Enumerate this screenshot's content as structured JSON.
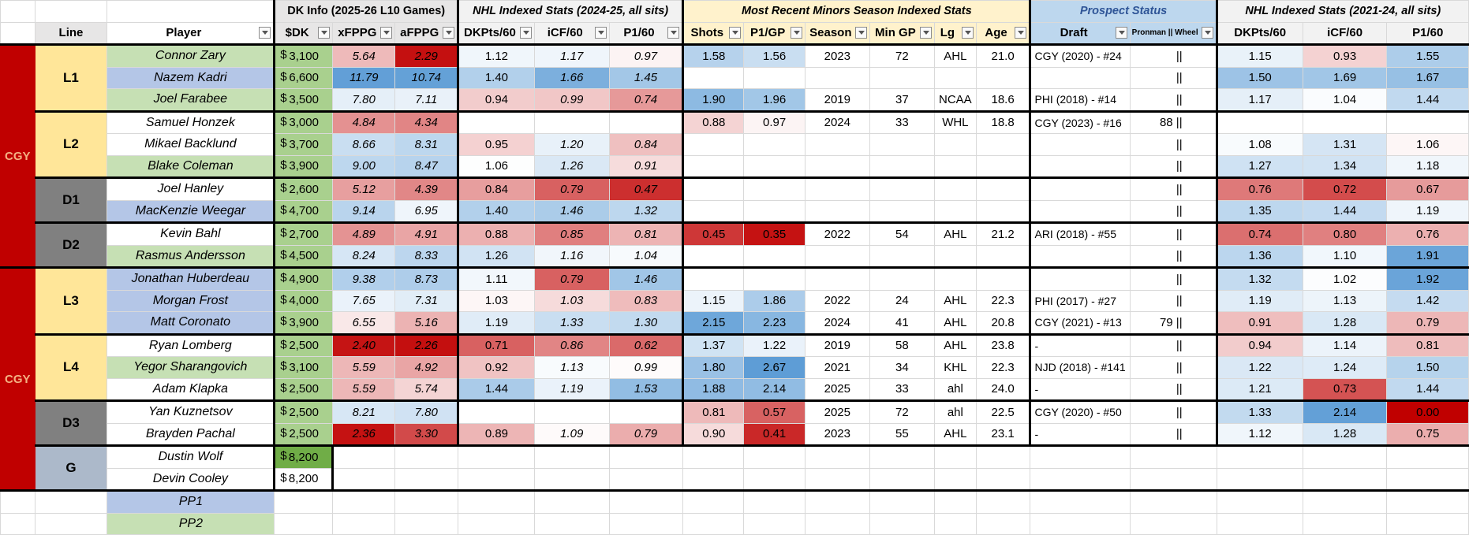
{
  "headers": {
    "group_dk": "DK Info (2025-26 L10 Games)",
    "group_nhl": "NHL Indexed Stats (2024-25, all sits)",
    "group_minors": "Most Recent Minors Season Indexed Stats",
    "group_prospect": "Prospect Status",
    "group_nhl_hist": "NHL Indexed Stats (2021-24, all sits)",
    "line": "Line",
    "player": "Player",
    "dk_salary": "$DK",
    "xfppg": "xFPPG",
    "afppg": "aFPPG",
    "dkpts60": "DKPts/60",
    "icf60": "iCF/60",
    "p160": "P1/60",
    "shots": "Shots",
    "p1gp": "P1/GP",
    "season": "Season",
    "min_gp": "Min GP",
    "lg": "Lg",
    "age": "Age",
    "draft": "Draft",
    "pronman": "Pronman || Wheel",
    "h_dkpts60": "DKPts/60",
    "h_icf60": "iCF/60",
    "h_p160": "P1/60"
  },
  "team_label": "CGY",
  "line_labels": {
    "L1": "L1",
    "L2": "L2",
    "D1": "D1",
    "D2": "D2",
    "L3": "L3",
    "L4": "L4",
    "D3": "D3",
    "G": "G"
  },
  "dollar_sign": "$",
  "players": [
    {
      "name": "Connor Zary",
      "dk": "3,100",
      "xf": "5.64",
      "af": "2.29",
      "n1": "1.12",
      "n2": "1.17",
      "n3": "0.97",
      "sh": "1.58",
      "pg": "1.56",
      "se": "2023",
      "mg": "72",
      "lg": "AHL",
      "ag": "21.0",
      "dr": "CGY (2020) - #24",
      "pr": "||",
      "h1": "1.15",
      "h2": "0.93",
      "h3": "1.55"
    },
    {
      "name": "Nazem Kadri",
      "dk": "6,600",
      "xf": "11.79",
      "af": "10.74",
      "n1": "1.40",
      "n2": "1.66",
      "n3": "1.45",
      "sh": "",
      "pg": "",
      "se": "",
      "mg": "",
      "lg": "",
      "ag": "",
      "dr": "",
      "pr": "||",
      "h1": "1.50",
      "h2": "1.69",
      "h3": "1.67"
    },
    {
      "name": "Joel Farabee",
      "dk": "3,500",
      "xf": "7.80",
      "af": "7.11",
      "n1": "0.94",
      "n2": "0.99",
      "n3": "0.74",
      "sh": "1.90",
      "pg": "1.96",
      "se": "2019",
      "mg": "37",
      "lg": "NCAA",
      "ag": "18.6",
      "dr": "PHI (2018) - #14",
      "pr": "||",
      "h1": "1.17",
      "h2": "1.04",
      "h3": "1.44"
    },
    {
      "name": "Samuel Honzek",
      "dk": "3,000",
      "xf": "4.84",
      "af": "4.34",
      "n1": "",
      "n2": "",
      "n3": "",
      "sh": "0.88",
      "pg": "0.97",
      "se": "2024",
      "mg": "33",
      "lg": "WHL",
      "ag": "18.8",
      "dr": "CGY (2023) - #16",
      "pr": "88 ||",
      "h1": "",
      "h2": "",
      "h3": ""
    },
    {
      "name": "Mikael Backlund",
      "dk": "3,700",
      "xf": "8.66",
      "af": "8.31",
      "n1": "0.95",
      "n2": "1.20",
      "n3": "0.84",
      "sh": "",
      "pg": "",
      "se": "",
      "mg": "",
      "lg": "",
      "ag": "",
      "dr": "",
      "pr": "||",
      "h1": "1.08",
      "h2": "1.31",
      "h3": "1.06"
    },
    {
      "name": "Blake Coleman",
      "dk": "3,900",
      "xf": "9.00",
      "af": "8.47",
      "n1": "1.06",
      "n2": "1.26",
      "n3": "0.91",
      "sh": "",
      "pg": "",
      "se": "",
      "mg": "",
      "lg": "",
      "ag": "",
      "dr": "",
      "pr": "||",
      "h1": "1.27",
      "h2": "1.34",
      "h3": "1.18"
    },
    {
      "name": "Joel Hanley",
      "dk": "2,600",
      "xf": "5.12",
      "af": "4.39",
      "n1": "0.84",
      "n2": "0.79",
      "n3": "0.47",
      "sh": "",
      "pg": "",
      "se": "",
      "mg": "",
      "lg": "",
      "ag": "",
      "dr": "",
      "pr": "||",
      "h1": "0.76",
      "h2": "0.72",
      "h3": "0.67"
    },
    {
      "name": "MacKenzie Weegar",
      "dk": "4,700",
      "xf": "9.14",
      "af": "6.95",
      "n1": "1.40",
      "n2": "1.46",
      "n3": "1.32",
      "sh": "",
      "pg": "",
      "se": "",
      "mg": "",
      "lg": "",
      "ag": "",
      "dr": "",
      "pr": "||",
      "h1": "1.35",
      "h2": "1.44",
      "h3": "1.19"
    },
    {
      "name": "Kevin Bahl",
      "dk": "2,700",
      "xf": "4.89",
      "af": "4.91",
      "n1": "0.88",
      "n2": "0.85",
      "n3": "0.81",
      "sh": "0.45",
      "pg": "0.35",
      "se": "2022",
      "mg": "54",
      "lg": "AHL",
      "ag": "21.2",
      "dr": "ARI (2018) - #55",
      "pr": "||",
      "h1": "0.74",
      "h2": "0.80",
      "h3": "0.76"
    },
    {
      "name": "Rasmus Andersson",
      "dk": "4,500",
      "xf": "8.24",
      "af": "8.33",
      "n1": "1.26",
      "n2": "1.16",
      "n3": "1.04",
      "sh": "",
      "pg": "",
      "se": "",
      "mg": "",
      "lg": "",
      "ag": "",
      "dr": "",
      "pr": "||",
      "h1": "1.36",
      "h2": "1.10",
      "h3": "1.91"
    },
    {
      "name": "Jonathan Huberdeau",
      "dk": "4,900",
      "xf": "9.38",
      "af": "8.73",
      "n1": "1.11",
      "n2": "0.79",
      "n3": "1.46",
      "sh": "",
      "pg": "",
      "se": "",
      "mg": "",
      "lg": "",
      "ag": "",
      "dr": "",
      "pr": "||",
      "h1": "1.32",
      "h2": "1.02",
      "h3": "1.92"
    },
    {
      "name": "Morgan Frost",
      "dk": "4,000",
      "xf": "7.65",
      "af": "7.31",
      "n1": "1.03",
      "n2": "1.03",
      "n3": "0.83",
      "sh": "1.15",
      "pg": "1.86",
      "se": "2022",
      "mg": "24",
      "lg": "AHL",
      "ag": "22.3",
      "dr": "PHI (2017) - #27",
      "pr": "||",
      "h1": "1.19",
      "h2": "1.13",
      "h3": "1.42"
    },
    {
      "name": "Matt Coronato",
      "dk": "3,900",
      "xf": "6.55",
      "af": "5.16",
      "n1": "1.19",
      "n2": "1.33",
      "n3": "1.30",
      "sh": "2.15",
      "pg": "2.23",
      "se": "2024",
      "mg": "41",
      "lg": "AHL",
      "ag": "20.8",
      "dr": "CGY (2021) - #13",
      "pr": "79 ||",
      "h1": "0.91",
      "h2": "1.28",
      "h3": "0.79"
    },
    {
      "name": "Ryan Lomberg",
      "dk": "2,500",
      "xf": "2.40",
      "af": "2.26",
      "n1": "0.71",
      "n2": "0.86",
      "n3": "0.62",
      "sh": "1.37",
      "pg": "1.22",
      "se": "2019",
      "mg": "58",
      "lg": "AHL",
      "ag": "23.8",
      "dr": "-",
      "pr": "||",
      "h1": "0.94",
      "h2": "1.14",
      "h3": "0.81"
    },
    {
      "name": "Yegor Sharangovich",
      "dk": "3,100",
      "xf": "5.59",
      "af": "4.92",
      "n1": "0.92",
      "n2": "1.13",
      "n3": "0.99",
      "sh": "1.80",
      "pg": "2.67",
      "se": "2021",
      "mg": "34",
      "lg": "KHL",
      "ag": "22.3",
      "dr": "NJD (2018) - #141",
      "pr": "||",
      "h1": "1.22",
      "h2": "1.24",
      "h3": "1.50"
    },
    {
      "name": "Adam Klapka",
      "dk": "2,500",
      "xf": "5.59",
      "af": "5.74",
      "n1": "1.44",
      "n2": "1.19",
      "n3": "1.53",
      "sh": "1.88",
      "pg": "2.14",
      "se": "2025",
      "mg": "33",
      "lg": "ahl",
      "ag": "24.0",
      "dr": "-",
      "pr": "||",
      "h1": "1.21",
      "h2": "0.73",
      "h3": "1.44"
    },
    {
      "name": "Yan Kuznetsov",
      "dk": "2,500",
      "xf": "8.21",
      "af": "7.80",
      "n1": "",
      "n2": "",
      "n3": "",
      "sh": "0.81",
      "pg": "0.57",
      "se": "2025",
      "mg": "72",
      "lg": "ahl",
      "ag": "22.5",
      "dr": "CGY (2020) - #50",
      "pr": "||",
      "h1": "1.33",
      "h2": "2.14",
      "h3": "0.00"
    },
    {
      "name": "Brayden Pachal",
      "dk": "2,500",
      "xf": "2.36",
      "af": "3.30",
      "n1": "0.89",
      "n2": "1.09",
      "n3": "0.79",
      "sh": "0.90",
      "pg": "0.41",
      "se": "2023",
      "mg": "55",
      "lg": "AHL",
      "ag": "23.1",
      "dr": "-",
      "pr": "||",
      "h1": "1.12",
      "h2": "1.28",
      "h3": "0.75"
    },
    {
      "name": "Dustin Wolf",
      "dk": "8,200"
    },
    {
      "name": "Devin Cooley",
      "dk": "8,200"
    }
  ],
  "pp_labels": [
    "PP1",
    "PP2"
  ],
  "colors": {
    "team_red": "#c00000",
    "forward_line": "#ffe699",
    "defense_line": "#808080",
    "goalie_line": "#acb9ca",
    "player_green": "#c6e0b4",
    "player_blue": "#b4c6e7",
    "salary_green": "#a9d08e",
    "cell_red_dark": "#c00000",
    "cell_blue_dark": "#5b9bd5"
  }
}
